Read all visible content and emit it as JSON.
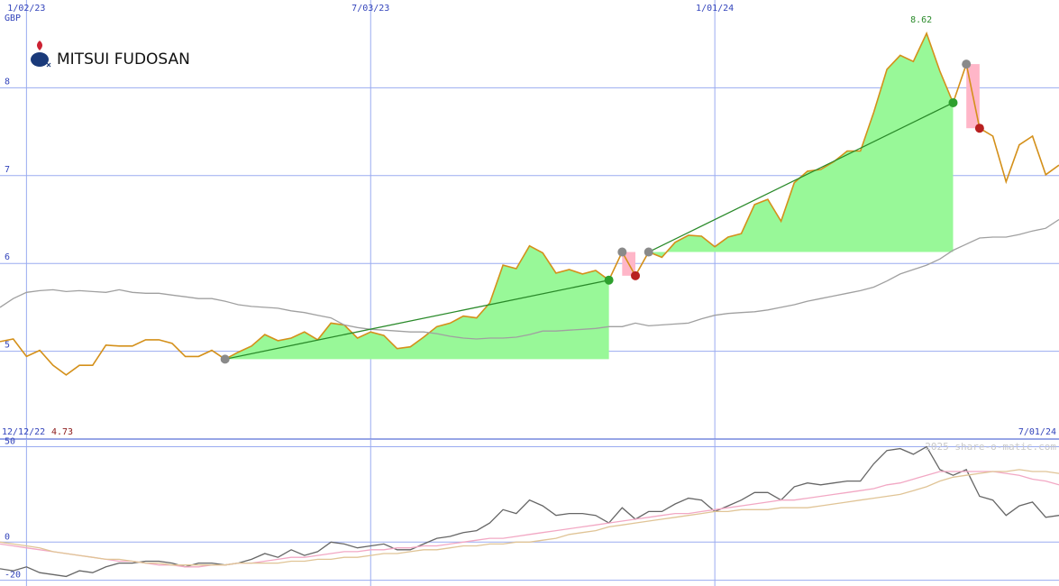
{
  "logo": "MITSUI FUDOSAN",
  "watermark": "2025 share-o-matic.com",
  "chart_data": [
    {
      "type": "line",
      "unit": "GBP",
      "range_start": "12/12/22",
      "range_end": "7/01/24",
      "categories": [
        null,
        null,
        "1/02/23",
        null,
        null,
        null,
        null,
        null,
        null,
        null,
        null,
        null,
        null,
        null,
        null,
        null,
        null,
        null,
        null,
        null,
        null,
        null,
        null,
        null,
        null,
        null,
        null,
        null,
        "7/03/23",
        null,
        null,
        null,
        null,
        null,
        null,
        null,
        null,
        null,
        null,
        null,
        null,
        null,
        null,
        null,
        null,
        null,
        null,
        null,
        null,
        null,
        null,
        null,
        null,
        null,
        "1/01/24",
        null,
        null,
        null,
        null,
        null,
        null,
        null,
        null,
        null,
        null,
        null,
        null,
        null,
        null,
        null,
        null,
        null,
        null,
        null,
        null,
        null,
        null,
        null,
        null,
        null,
        null
      ],
      "series": [
        {
          "color": "#d4901a",
          "values": [
            5.11,
            5.14,
            4.94,
            5.01,
            4.84,
            4.73,
            4.84,
            4.84,
            5.07,
            5.06,
            5.06,
            5.13,
            5.13,
            5.09,
            4.94,
            4.94,
            5.01,
            4.91,
            4.99,
            5.06,
            5.19,
            5.12,
            5.15,
            5.22,
            5.13,
            5.32,
            5.3,
            5.15,
            5.22,
            5.18,
            5.03,
            5.05,
            5.16,
            5.28,
            5.32,
            5.4,
            5.38,
            5.55,
            5.98,
            5.94,
            6.2,
            6.12,
            5.89,
            5.93,
            5.88,
            5.92,
            5.81,
            6.13,
            5.86,
            6.13,
            6.07,
            6.24,
            6.32,
            6.31,
            6.19,
            6.3,
            6.34,
            6.67,
            6.73,
            6.48,
            6.92,
            7.05,
            7.07,
            7.16,
            7.28,
            7.28,
            7.72,
            8.21,
            8.37,
            8.3,
            8.62,
            8.19,
            7.83,
            8.27,
            7.54,
            7.45,
            6.93,
            7.35,
            7.45,
            7.01,
            7.12
          ]
        },
        {
          "color": "#a0a0a0",
          "values": [
            5.5,
            5.6,
            5.67,
            5.69,
            5.7,
            5.68,
            5.69,
            5.68,
            5.67,
            5.7,
            5.67,
            5.66,
            5.66,
            5.64,
            5.62,
            5.6,
            5.6,
            5.57,
            5.53,
            5.51,
            5.5,
            5.49,
            5.46,
            5.44,
            5.41,
            5.38,
            5.3,
            5.27,
            5.25,
            5.24,
            5.23,
            5.22,
            5.22,
            5.2,
            5.17,
            5.15,
            5.14,
            5.15,
            5.15,
            5.16,
            5.19,
            5.23,
            5.23,
            5.24,
            5.25,
            5.26,
            5.28,
            5.28,
            5.32,
            5.29,
            5.3,
            5.31,
            5.32,
            5.37,
            5.41,
            5.43,
            5.44,
            5.45,
            5.47,
            5.5,
            5.53,
            5.57,
            5.6,
            5.63,
            5.66,
            5.69,
            5.73,
            5.8,
            5.88,
            5.93,
            5.98,
            6.05,
            6.15,
            6.22,
            6.29,
            6.3,
            6.3,
            6.33,
            6.37,
            6.4,
            6.5
          ]
        }
      ],
      "ylim": [
        4,
        9
      ],
      "yticks": [
        5,
        6,
        7,
        8
      ],
      "grid": true,
      "grid_color": "#9aabf0",
      "trades": [
        {
          "start": 17,
          "end": 46,
          "side": "long"
        },
        {
          "start": 47,
          "end": 48,
          "side": "short"
        },
        {
          "start": 49,
          "end": 72,
          "side": "long"
        },
        {
          "start": 73,
          "end": 74,
          "side": "short"
        }
      ],
      "trade_colors": {
        "long": "#98f898",
        "short": "#ffb6c8",
        "line": "#2a8a2a"
      },
      "marker_colors": {
        "entry": "#8a8a8a",
        "long": "#2ea02e",
        "short": "#b82020"
      },
      "max_label_color": "#2a8a2a",
      "min_label_color": "#8b1a1a"
    },
    {
      "type": "line",
      "series": [
        {
          "color": "#666666",
          "values": [
            -14,
            -15,
            -13,
            -16,
            -17,
            -18,
            -15,
            -16,
            -13,
            -11,
            -11,
            -10,
            -10,
            -11,
            -13,
            -11,
            -11,
            -12,
            -11,
            -9,
            -6,
            -8,
            -4,
            -7,
            -5,
            0,
            -1,
            -3,
            -2,
            -1,
            -4,
            -4,
            -1,
            2,
            3,
            5,
            6,
            10,
            17,
            15,
            22,
            19,
            14,
            15,
            15,
            14,
            10,
            18,
            12,
            16,
            16,
            20,
            23,
            22,
            16,
            19,
            22,
            26,
            26,
            22,
            29,
            31,
            30,
            31,
            32,
            32,
            41,
            48,
            49,
            46,
            50,
            38,
            35,
            38,
            24,
            22,
            14,
            19,
            21,
            13,
            14
          ]
        },
        {
          "color": "#f2a8c4",
          "values": [
            -1,
            -2,
            -3,
            -4,
            -5,
            -6,
            -7,
            -8,
            -9,
            -10,
            -10,
            -11,
            -12,
            -12,
            -13,
            -13,
            -12,
            -12,
            -11,
            -11,
            -10,
            -9,
            -8,
            -8,
            -7,
            -6,
            -5,
            -5,
            -4,
            -4,
            -3,
            -3,
            -2,
            -2,
            -1,
            0,
            1,
            2,
            2,
            3,
            4,
            5,
            6,
            7,
            8,
            9,
            10,
            11,
            12,
            13,
            14,
            15,
            15,
            16,
            17,
            18,
            19,
            20,
            21,
            22,
            22,
            23,
            24,
            25,
            26,
            27,
            28,
            30,
            31,
            33,
            35,
            37,
            37,
            37,
            37,
            37,
            36,
            35,
            33,
            32,
            30
          ]
        },
        {
          "color": "#e0c496",
          "values": [
            0,
            -1,
            -2,
            -3,
            -5,
            -6,
            -7,
            -8,
            -9,
            -9,
            -10,
            -11,
            -11,
            -12,
            -12,
            -12,
            -12,
            -12,
            -11,
            -11,
            -11,
            -11,
            -10,
            -10,
            -9,
            -9,
            -8,
            -8,
            -7,
            -6,
            -6,
            -5,
            -4,
            -4,
            -3,
            -2,
            -2,
            -1,
            -1,
            0,
            0,
            1,
            2,
            4,
            5,
            6,
            8,
            9,
            10,
            11,
            12,
            13,
            14,
            15,
            16,
            16,
            17,
            17,
            17,
            18,
            18,
            18,
            19,
            20,
            21,
            22,
            23,
            24,
            25,
            27,
            29,
            32,
            34,
            35,
            36,
            37,
            37,
            38,
            37,
            37,
            36
          ]
        }
      ],
      "ylim": [
        -23,
        54
      ],
      "yticks": [
        50,
        0,
        -20
      ],
      "grid": true,
      "grid_color": "#9aabf0"
    }
  ]
}
